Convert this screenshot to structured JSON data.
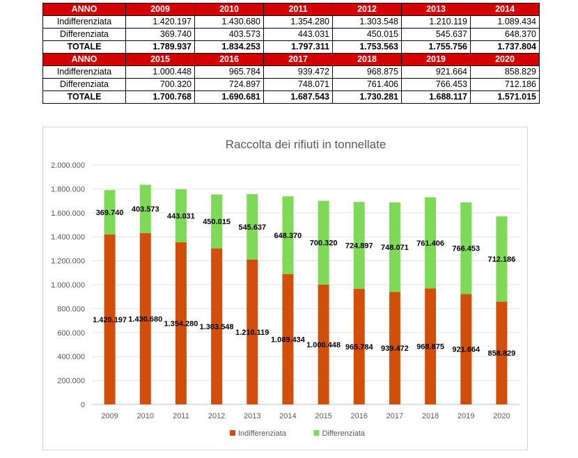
{
  "table": {
    "blocks": [
      {
        "header": "ANNO",
        "years": [
          "2009",
          "2010",
          "2011",
          "2012",
          "2013",
          "2014"
        ],
        "rows": [
          {
            "label": "Indifferenziata",
            "values": [
              "1.420.197",
              "1.430.680",
              "1.354.280",
              "1.303.548",
              "1.210.119",
              "1.089.434"
            ]
          },
          {
            "label": "Differenziata",
            "values": [
              "369.740",
              "403.573",
              "443.031",
              "450.015",
              "545.637",
              "648.370"
            ]
          }
        ],
        "total": {
          "label": "TOTALE",
          "values": [
            "1.789.937",
            "1.834.253",
            "1.797.311",
            "1.753.563",
            "1.755.756",
            "1.737.804"
          ]
        }
      },
      {
        "header": "ANNO",
        "years": [
          "2015",
          "2016",
          "2017",
          "2018",
          "2019",
          "2020"
        ],
        "rows": [
          {
            "label": "Indifferenziata",
            "values": [
              "1.000.448",
              "965.784",
              "939.472",
              "968.875",
              "921.664",
              "858.829"
            ]
          },
          {
            "label": "Differenziata",
            "values": [
              "700.320",
              "724.897",
              "748.071",
              "761.406",
              "766.453",
              "712.186"
            ]
          }
        ],
        "total": {
          "label": "TOTALE",
          "values": [
            "1.700.768",
            "1.690.681",
            "1.687.543",
            "1.730.281",
            "1.688.117",
            "1.571.015"
          ]
        }
      }
    ]
  },
  "chart_data": {
    "type": "bar",
    "stacked": true,
    "title": "Raccolta dei rifiuti in tonnellate",
    "categories": [
      "2009",
      "2010",
      "2011",
      "2012",
      "2013",
      "2014",
      "2015",
      "2016",
      "2017",
      "2018",
      "2019",
      "2020"
    ],
    "series": [
      {
        "name": "Indifferenziata",
        "color": "#d24f0b",
        "values": [
          1420197,
          1430680,
          1354280,
          1303548,
          1210119,
          1089434,
          1000448,
          965784,
          939472,
          968875,
          921664,
          858829
        ],
        "labels": [
          "1.420.197",
          "1.430.680",
          "1.354.280",
          "1.303.548",
          "1.210.119",
          "1.089.434",
          "1.000.448",
          "965.784",
          "939.472",
          "968.875",
          "921.664",
          "858.829"
        ]
      },
      {
        "name": "Differenziata",
        "color": "#7ed957",
        "values": [
          369740,
          403573,
          443031,
          450015,
          545637,
          648370,
          700320,
          724897,
          748071,
          761406,
          766453,
          712186
        ],
        "labels": [
          "369.740",
          "403.573",
          "443.031",
          "450.015",
          "545.637",
          "648.370",
          "700.320",
          "724.897",
          "748.071",
          "761.406",
          "766.453",
          "712.186"
        ]
      }
    ],
    "ylim": [
      0,
      2000000
    ],
    "yticks": [
      0,
      200000,
      400000,
      600000,
      800000,
      1000000,
      1200000,
      1400000,
      1600000,
      1800000,
      2000000
    ],
    "ytick_labels": [
      "0",
      "200.000",
      "400.000",
      "600.000",
      "800.000",
      "1.000.000",
      "1.200.000",
      "1.400.000",
      "1.600.000",
      "1.800.000",
      "2.000.000"
    ],
    "grid": true,
    "legend_position": "bottom"
  }
}
